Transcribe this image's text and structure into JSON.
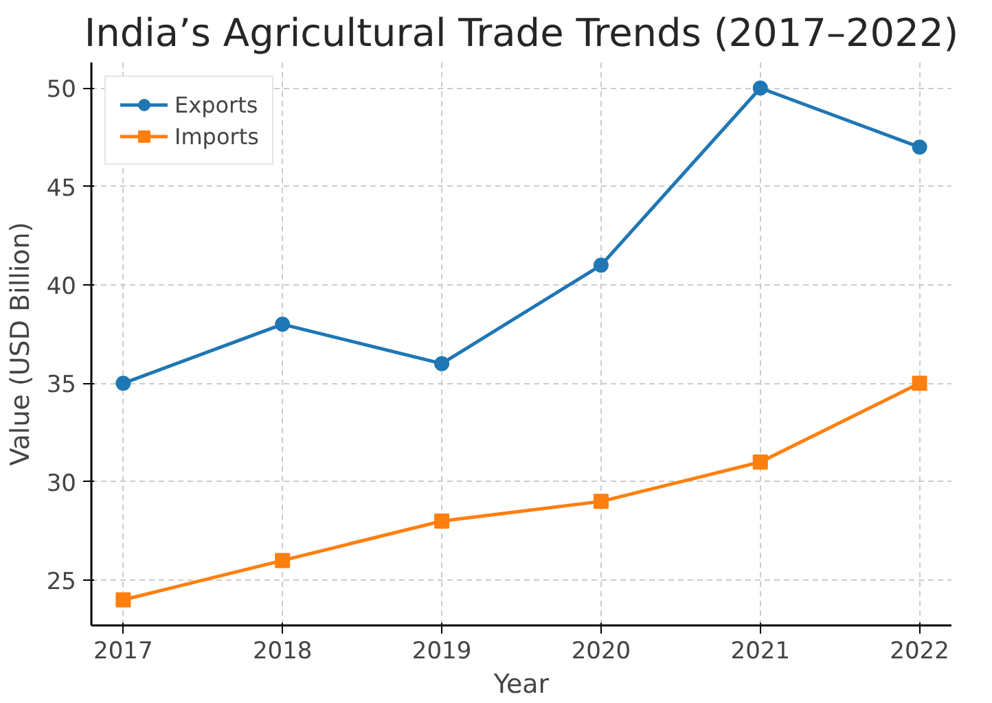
{
  "chart_data": {
    "type": "line",
    "title": "India’s Agricultural Trade Trends (2017–2022)",
    "xlabel": "Year",
    "ylabel": "Value (USD Billion)",
    "x": [
      2017,
      2018,
      2019,
      2020,
      2021,
      2022
    ],
    "series": [
      {
        "name": "Exports",
        "color": "#1f77b4",
        "marker": "circle",
        "values": [
          35,
          38,
          36,
          41,
          50,
          47
        ]
      },
      {
        "name": "Imports",
        "color": "#ff7f0e",
        "marker": "square",
        "values": [
          24,
          26,
          28,
          29,
          31,
          35
        ]
      }
    ],
    "xlim": [
      2016.8,
      2022.2
    ],
    "ylim": [
      22.7,
      51.3
    ],
    "xticks": [
      2017,
      2018,
      2019,
      2020,
      2021,
      2022
    ],
    "yticks": [
      25,
      30,
      35,
      40,
      45,
      50
    ],
    "grid": true,
    "legend": "top left",
    "line_style": "solid"
  }
}
